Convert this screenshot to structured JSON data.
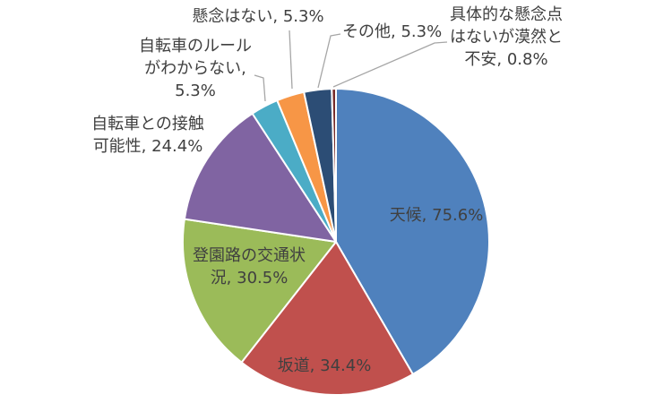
{
  "chart_data": {
    "type": "pie",
    "title": "",
    "legend": "none",
    "background": "#FFFFFF",
    "categories": [
      "天候",
      "坂道",
      "登園路の交通状況",
      "自転車との接触可能性",
      "自転車のルールがわからない",
      "懸念はない",
      "その他",
      "具体的な懸念点はないが漠然と不安"
    ],
    "values": [
      75.6,
      34.4,
      30.5,
      24.4,
      5.3,
      5.3,
      5.3,
      0.8
    ],
    "unit": "%",
    "start_angle_deg": 0,
    "direction": "clockwise",
    "colors": [
      "#4F81BD",
      "#C0504D",
      "#9BBB59",
      "#8064A2",
      "#4BACC6",
      "#F79646",
      "#2C4D75",
      "#772C2A"
    ],
    "labels": [
      "天候, 75.6%",
      "坂道, 34.4%",
      "登園路の交通状\n況, 30.5%",
      "自転車との接触\n可能性, 24.4%",
      "自転車のルール\nがわからない,\n5.3%",
      "懸念はない, 5.3%",
      "その他, 5.3%",
      "具体的な懸念点\nはないが漠然と\n不安, 0.8%"
    ]
  },
  "canvas": {
    "label_color": "#404040",
    "leader_line_color": "#A6A6A6",
    "slice_border_color": "#FFFFFF"
  }
}
